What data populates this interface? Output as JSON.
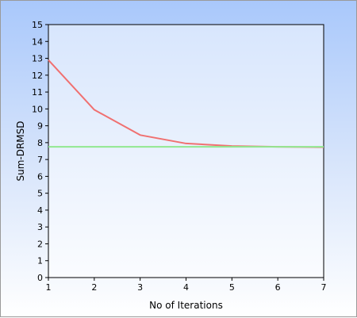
{
  "chart_data": {
    "type": "line",
    "title": "",
    "xlabel": "No of Iterations",
    "ylabel": "Sum-DRMSD",
    "xlim": [
      1,
      7
    ],
    "ylim": [
      0,
      15
    ],
    "x": [
      1,
      2,
      3,
      4,
      5,
      6,
      7
    ],
    "x_ticks": [
      1,
      2,
      3,
      4,
      5,
      6,
      7
    ],
    "y_ticks": [
      0,
      1,
      2,
      3,
      4,
      5,
      6,
      7,
      8,
      9,
      10,
      11,
      12,
      13,
      14,
      15
    ],
    "grid": false,
    "legend": "none",
    "series": [
      {
        "values": [
          12.9,
          9.95,
          8.45,
          7.95,
          7.8,
          7.75,
          7.73
        ],
        "color": "#f07070"
      },
      {
        "values": [
          7.75,
          7.75,
          7.75,
          7.75,
          7.75,
          7.75,
          7.75
        ],
        "color": "#90e890"
      }
    ]
  }
}
